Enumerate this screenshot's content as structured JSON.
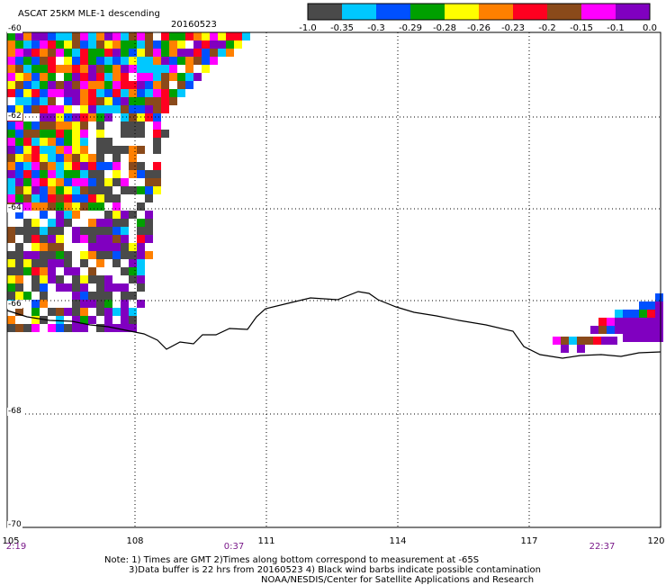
{
  "title": "ASCAT 25KM MLE-1 descending",
  "date": "20160523",
  "colorbar": {
    "colors": [
      "#4a4a4a",
      "#00c8ff",
      "#0050ff",
      "#00a000",
      "#ffff00",
      "#ff8000",
      "#ff0020",
      "#8a4a1a",
      "#ff00ff",
      "#8000c0"
    ],
    "labels": [
      "-1.0",
      "-0.35",
      "-0.3",
      "-0.29",
      "-0.28",
      "-0.26",
      "-0.23",
      "-0.2",
      "-0.15",
      "-0.1",
      "0.0"
    ]
  },
  "axes": {
    "lat_labels": [
      "-60",
      "-62",
      "-64",
      "-66",
      "-68",
      "-70"
    ],
    "lon_labels": [
      "105",
      "108",
      "111",
      "114",
      "117",
      "120"
    ],
    "time_labels": [
      "2:19",
      "0:37",
      "22:37"
    ]
  },
  "notes": [
    "Note: 1) Times are GMT 2)Times along bottom correspond to measurement at -65S",
    "3)Data buffer is 22 hrs from 20160523 4) Black wind barbs indicate possible contamination",
    "NOAA/NESDIS/Center for Satellite Applications and Research"
  ]
}
